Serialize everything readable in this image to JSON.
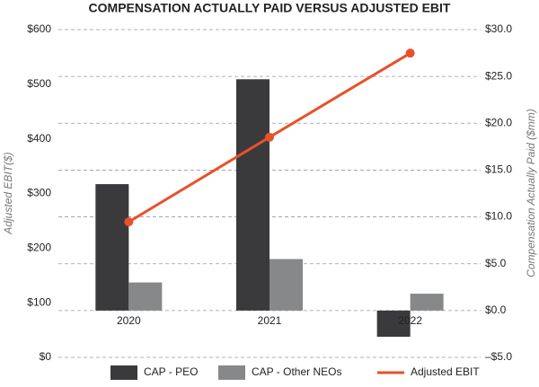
{
  "chart_data": {
    "type": "bar",
    "title": "COMPENSATION ACTUALLY PAID VERSUS ADJUSTED EBIT",
    "ylabel": "Adjusted EBIT($)",
    "y2label": "Compensation Actually Paid ($mm)",
    "categories": [
      "2020",
      "2021",
      "2022"
    ],
    "series": [
      {
        "name": "CAP - PEO",
        "type": "bar",
        "axis": "y2",
        "color": "#3a3a3c",
        "values": [
          13.5,
          24.7,
          -2.8
        ]
      },
      {
        "name": "CAP - Other NEOs",
        "type": "bar",
        "axis": "y2",
        "color": "#87888a",
        "values": [
          3.0,
          5.5,
          1.8
        ]
      },
      {
        "name": "Adjusted EBIT",
        "type": "line",
        "axis": "y",
        "color": "#e8512a",
        "values": [
          248,
          403,
          557
        ]
      }
    ],
    "ylim": [
      0,
      600
    ],
    "yticks": [
      {
        "value": 0,
        "label": "$0"
      },
      {
        "value": 100,
        "label": "$100"
      },
      {
        "value": 200,
        "label": "$200"
      },
      {
        "value": 300,
        "label": "$300"
      },
      {
        "value": 400,
        "label": "$400"
      },
      {
        "value": 500,
        "label": "$500"
      },
      {
        "value": 600,
        "label": "$600"
      }
    ],
    "y2lim": [
      -5,
      30
    ],
    "y2ticks": [
      {
        "value": -5,
        "label": "–$5.0"
      },
      {
        "value": 0,
        "label": "$0.0"
      },
      {
        "value": 5,
        "label": "$5.0"
      },
      {
        "value": 10,
        "label": "$10.0"
      },
      {
        "value": 15,
        "label": "$15.0"
      },
      {
        "value": 20,
        "label": "$20.0"
      },
      {
        "value": 25,
        "label": "$25.0"
      },
      {
        "value": 30,
        "label": "$30.0"
      }
    ],
    "grid": true,
    "legend": "bottom"
  }
}
